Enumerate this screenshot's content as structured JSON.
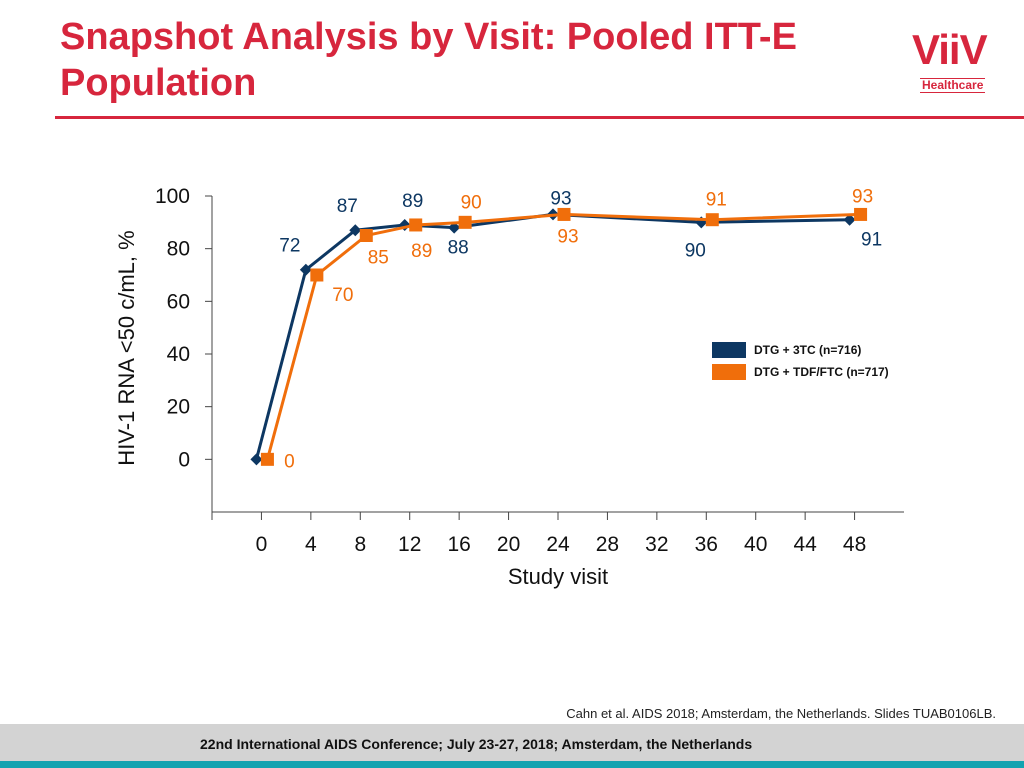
{
  "header": {
    "title": "Snapshot Analysis by Visit: Pooled ITT-E Population",
    "logo_text": "ViiV",
    "logo_subtext": "Healthcare"
  },
  "colors": {
    "accent": "#d7263d",
    "series_a": "#0d3762",
    "series_b": "#f06e0b",
    "footer_stripe": "#13a3b0"
  },
  "chart_data": {
    "type": "line",
    "x": [
      0,
      4,
      8,
      12,
      16,
      24,
      36,
      48
    ],
    "xticks": [
      0,
      4,
      8,
      12,
      16,
      20,
      24,
      28,
      32,
      36,
      40,
      44,
      48
    ],
    "yticks": [
      0,
      20,
      40,
      60,
      80,
      100
    ],
    "xlabel": "Study visit",
    "ylabel": "HIV-1 RNA <50 c/mL, %",
    "ylim": [
      -20,
      100
    ],
    "xlim": [
      -4,
      52
    ],
    "legend_position": "right",
    "series": [
      {
        "name": "DTG + 3TC (n=716)",
        "color": "#0d3762",
        "marker": "diamond",
        "values": [
          0,
          72,
          87,
          89,
          88,
          93,
          90,
          91
        ]
      },
      {
        "name": "DTG + TDF/FTC (n=717)",
        "color": "#f06e0b",
        "marker": "square",
        "values": [
          0,
          70,
          85,
          89,
          90,
          93,
          91,
          93
        ]
      }
    ]
  },
  "footer": {
    "citation": "Cahn et al. AIDS 2018; Amsterdam, the Netherlands. Slides TUAB0106LB.",
    "conference": "22nd International AIDS Conference; July 23-27, 2018; Amsterdam, the Netherlands"
  }
}
